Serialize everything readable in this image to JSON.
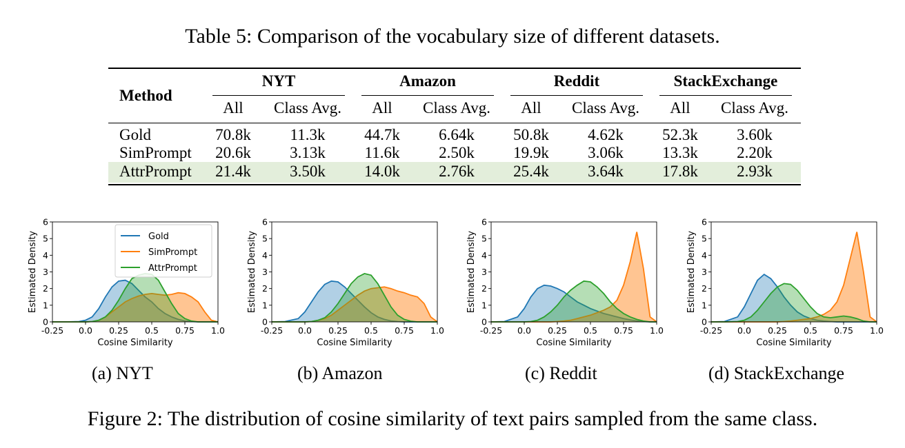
{
  "table": {
    "caption": "Table 5: Comparison of the vocabulary size of different datasets.",
    "method_header": "Method",
    "datasets": [
      "NYT",
      "Amazon",
      "Reddit",
      "StackExchange"
    ],
    "subheaders": [
      "All",
      "Class Avg."
    ],
    "rows": [
      {
        "method": "Gold",
        "values": [
          "70.8k",
          "11.3k",
          "44.7k",
          "6.64k",
          "50.8k",
          "4.62k",
          "52.3k",
          "3.60k"
        ]
      },
      {
        "method": "SimPrompt",
        "values": [
          "20.6k",
          "3.13k",
          "11.6k",
          "2.50k",
          "19.9k",
          "3.06k",
          "13.3k",
          "2.20k"
        ]
      },
      {
        "method": "AttrPrompt",
        "values": [
          "21.4k",
          "3.50k",
          "14.0k",
          "2.76k",
          "25.4k",
          "3.64k",
          "17.8k",
          "2.93k"
        ]
      }
    ],
    "highlight_row": "AttrPrompt",
    "highlight_color": "#e3eedb"
  },
  "figure": {
    "caption": "Figure 2: The distribution of cosine similarity of text pairs sampled from the same class.",
    "subcaptions": [
      "(a) NYT",
      "(b) Amazon",
      "(c) Reddit",
      "(d) StackExchange"
    ],
    "legend": [
      "Gold",
      "SimPrompt",
      "AttrPrompt"
    ],
    "legend_location": "upper-left of first panel",
    "colors": {
      "Gold": "#1f77b4",
      "SimPrompt": "#ff7f0e",
      "AttrPrompt": "#2ca02c"
    }
  },
  "chart_data": [
    {
      "type": "area",
      "panel": "(a) NYT",
      "xlabel": "Cosine Similarity",
      "ylabel": "Estimated Density",
      "xlim": [
        -0.25,
        1.0
      ],
      "ylim": [
        0,
        6
      ],
      "xticks": [
        "-0.25",
        "0.0",
        "0.25",
        "0.5",
        "0.75",
        "1.0"
      ],
      "yticks": [
        "0",
        "1",
        "2",
        "3",
        "4",
        "5",
        "6"
      ],
      "x": [
        -0.25,
        -0.15,
        -0.05,
        0.0,
        0.05,
        0.1,
        0.15,
        0.2,
        0.25,
        0.3,
        0.35,
        0.4,
        0.45,
        0.5,
        0.55,
        0.6,
        0.65,
        0.7,
        0.75,
        0.8,
        0.85,
        0.9,
        0.95,
        1.0
      ],
      "series": [
        {
          "name": "Gold",
          "values": [
            0,
            0,
            0.02,
            0.1,
            0.3,
            0.8,
            1.5,
            2.1,
            2.45,
            2.5,
            2.3,
            1.9,
            1.5,
            1.2,
            0.8,
            0.5,
            0.3,
            0.15,
            0.06,
            0.02,
            0,
            0,
            0,
            0
          ]
        },
        {
          "name": "SimPrompt",
          "values": [
            0,
            0,
            0,
            0,
            0.02,
            0.1,
            0.3,
            0.6,
            0.9,
            1.2,
            1.4,
            1.55,
            1.65,
            1.7,
            1.65,
            1.6,
            1.65,
            1.75,
            1.7,
            1.5,
            1.2,
            0.6,
            0.1,
            0
          ]
        },
        {
          "name": "AttrPrompt",
          "values": [
            0,
            0,
            0,
            0,
            0.02,
            0.1,
            0.3,
            0.7,
            1.3,
            2.0,
            2.6,
            2.8,
            2.9,
            2.85,
            2.5,
            1.8,
            1.1,
            0.5,
            0.2,
            0.05,
            0,
            0,
            0,
            0
          ]
        }
      ]
    },
    {
      "type": "area",
      "panel": "(b) Amazon",
      "xlabel": "Cosine Similarity",
      "ylabel": "Estimated Density",
      "xlim": [
        -0.25,
        1.0
      ],
      "ylim": [
        0,
        6
      ],
      "xticks": [
        "-0.25",
        "0.0",
        "0.25",
        "0.5",
        "0.75",
        "1.0"
      ],
      "yticks": [
        "0",
        "1",
        "2",
        "3",
        "4",
        "5",
        "6"
      ],
      "x": [
        -0.25,
        -0.15,
        -0.05,
        0.0,
        0.05,
        0.1,
        0.15,
        0.2,
        0.25,
        0.3,
        0.35,
        0.4,
        0.45,
        0.5,
        0.55,
        0.6,
        0.65,
        0.7,
        0.75,
        0.8,
        0.85,
        0.9,
        0.95,
        1.0
      ],
      "series": [
        {
          "name": "Gold",
          "values": [
            0,
            0.02,
            0.2,
            0.6,
            1.2,
            1.8,
            2.25,
            2.45,
            2.4,
            2.1,
            1.7,
            1.3,
            0.9,
            0.55,
            0.3,
            0.15,
            0.06,
            0.02,
            0,
            0,
            0,
            0,
            0,
            0
          ]
        },
        {
          "name": "SimPrompt",
          "values": [
            0,
            0,
            0,
            0,
            0.02,
            0.1,
            0.2,
            0.4,
            0.7,
            1.0,
            1.3,
            1.6,
            1.85,
            2.0,
            2.05,
            2.1,
            2.0,
            1.85,
            1.75,
            1.6,
            1.5,
            1.1,
            0.3,
            0
          ]
        },
        {
          "name": "AttrPrompt",
          "values": [
            0,
            0,
            0,
            0,
            0.02,
            0.1,
            0.25,
            0.6,
            1.1,
            1.7,
            2.3,
            2.7,
            2.9,
            2.8,
            2.3,
            1.6,
            0.9,
            0.4,
            0.15,
            0.04,
            0,
            0,
            0,
            0
          ]
        }
      ]
    },
    {
      "type": "area",
      "panel": "(c) Reddit",
      "xlabel": "Cosine Similarity",
      "ylabel": "Estimated Density",
      "xlim": [
        -0.25,
        1.0
      ],
      "ylim": [
        0,
        6
      ],
      "xticks": [
        "-0.25",
        "0.0",
        "0.25",
        "0.5",
        "0.75",
        "1.0"
      ],
      "yticks": [
        "0",
        "1",
        "2",
        "3",
        "4",
        "5",
        "6"
      ],
      "x": [
        -0.25,
        -0.15,
        -0.05,
        0.0,
        0.05,
        0.1,
        0.15,
        0.2,
        0.25,
        0.3,
        0.35,
        0.4,
        0.45,
        0.5,
        0.55,
        0.6,
        0.65,
        0.7,
        0.75,
        0.8,
        0.85,
        0.9,
        0.95,
        1.0
      ],
      "series": [
        {
          "name": "Gold",
          "values": [
            0,
            0.02,
            0.3,
            0.8,
            1.5,
            2.0,
            2.2,
            2.15,
            2.0,
            1.8,
            1.5,
            1.2,
            1.0,
            0.8,
            0.65,
            0.5,
            0.4,
            0.3,
            0.2,
            0.12,
            0.06,
            0.02,
            0,
            0
          ]
        },
        {
          "name": "SimPrompt",
          "values": [
            0,
            0,
            0,
            0,
            0,
            0,
            0,
            0,
            0.02,
            0.05,
            0.1,
            0.2,
            0.3,
            0.4,
            0.55,
            0.7,
            0.9,
            1.3,
            2.2,
            3.6,
            5.4,
            3.2,
            0.3,
            0
          ]
        },
        {
          "name": "AttrPrompt",
          "values": [
            0,
            0,
            0,
            0,
            0.02,
            0.1,
            0.3,
            0.6,
            1.0,
            1.5,
            1.9,
            2.2,
            2.45,
            2.4,
            2.1,
            1.7,
            1.2,
            0.8,
            0.5,
            0.3,
            0.15,
            0.05,
            0,
            0
          ]
        }
      ]
    },
    {
      "type": "area",
      "panel": "(d) StackExchange",
      "xlabel": "Cosine Similarity",
      "ylabel": "Estimated Density",
      "xlim": [
        -0.25,
        1.0
      ],
      "ylim": [
        0,
        6
      ],
      "xticks": [
        "-0.25",
        "0.0",
        "0.25",
        "0.5",
        "0.75",
        "1.0"
      ],
      "yticks": [
        "0",
        "1",
        "2",
        "3",
        "4",
        "5",
        "6"
      ],
      "x": [
        -0.25,
        -0.15,
        -0.05,
        0.0,
        0.05,
        0.1,
        0.15,
        0.2,
        0.25,
        0.3,
        0.35,
        0.4,
        0.45,
        0.5,
        0.55,
        0.6,
        0.65,
        0.7,
        0.75,
        0.8,
        0.85,
        0.9,
        0.95,
        1.0
      ],
      "series": [
        {
          "name": "Gold",
          "values": [
            0,
            0.02,
            0.3,
            0.9,
            1.7,
            2.5,
            2.85,
            2.6,
            2.1,
            1.5,
            1.0,
            0.6,
            0.35,
            0.2,
            0.1,
            0.05,
            0.02,
            0,
            0,
            0,
            0,
            0,
            0,
            0
          ]
        },
        {
          "name": "SimPrompt",
          "values": [
            0,
            0,
            0,
            0,
            0,
            0,
            0,
            0,
            0,
            0.02,
            0.05,
            0.1,
            0.15,
            0.2,
            0.3,
            0.45,
            0.7,
            1.2,
            2.2,
            3.8,
            5.4,
            3.0,
            0.3,
            0
          ]
        },
        {
          "name": "AttrPrompt",
          "values": [
            0,
            0,
            0.02,
            0.1,
            0.3,
            0.7,
            1.2,
            1.7,
            2.1,
            2.3,
            2.25,
            1.9,
            1.4,
            0.9,
            0.5,
            0.3,
            0.25,
            0.3,
            0.35,
            0.3,
            0.2,
            0.05,
            0,
            0
          ]
        }
      ]
    }
  ]
}
